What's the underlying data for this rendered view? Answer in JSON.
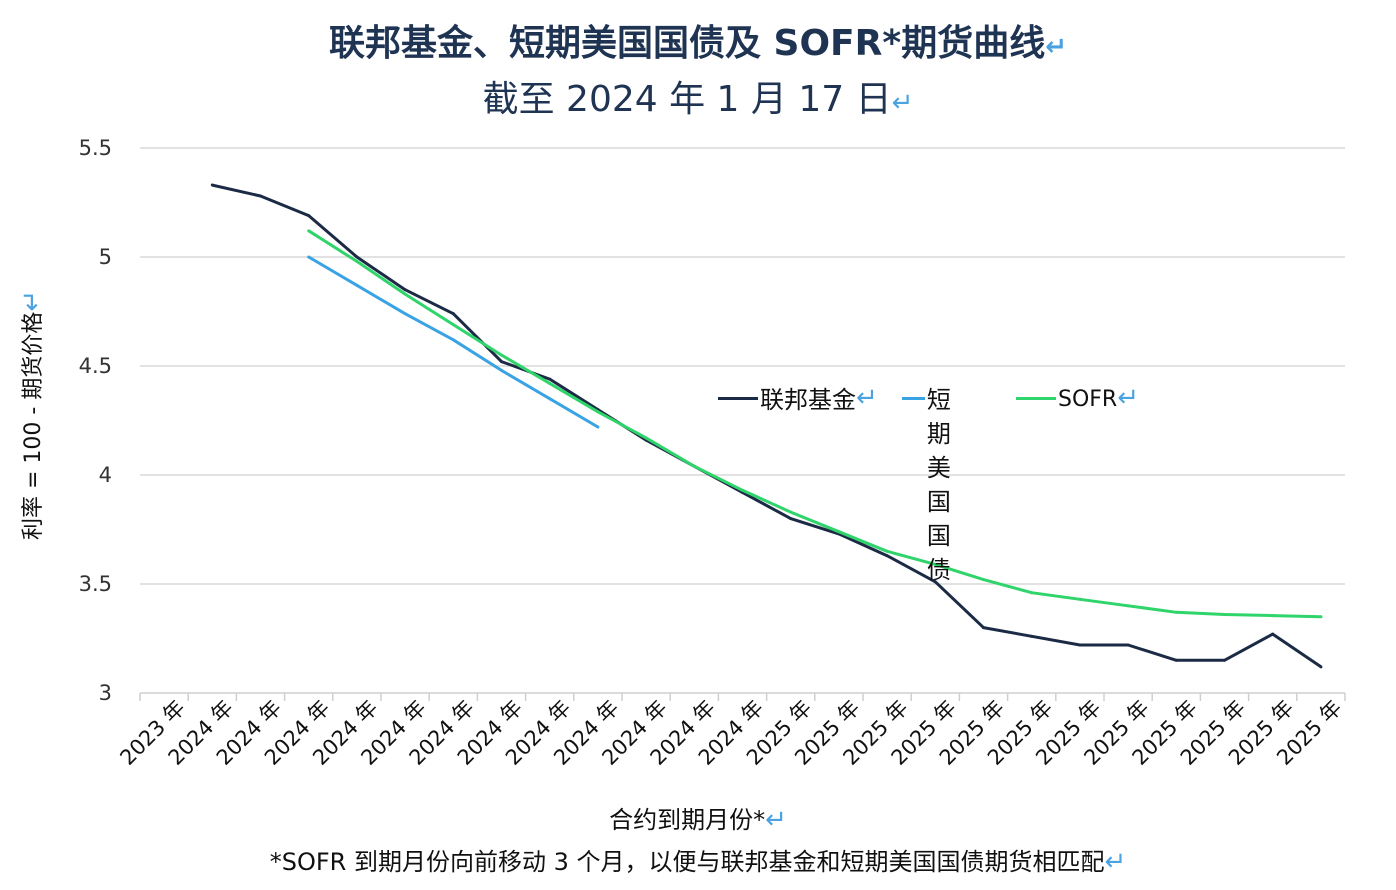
{
  "title": {
    "line1": "联邦基金、短期美国国债及 SOFR*期货曲线",
    "line2": "截至 2024 年 1 月 17 日",
    "return_mark": "↵"
  },
  "footnote": "*SOFR 到期月份向前移动 3 个月，以便与联邦基金和短期美国国债期货相匹配",
  "colors": {
    "fed_funds": "#1c2b45",
    "tbill": "#3aa3e3",
    "sofr": "#2fd46a",
    "grid": "#d9d9d9",
    "title": "#1f3352"
  },
  "chart_data": {
    "type": "line",
    "title": "联邦基金、短期美国国债及 SOFR*期货曲线",
    "subtitle": "截至 2024 年 1 月 17 日",
    "xlabel": "合约到期月份*",
    "ylabel": "利率 = 100 - 期货价格",
    "ylim": [
      3,
      5.5
    ],
    "yticks": [
      "3",
      "3.5",
      "4",
      "4.5",
      "5",
      "5.5"
    ],
    "grid": true,
    "legend_position": "center-right",
    "categories": [
      "2023 年",
      "2024 年",
      "2024 年",
      "2024 年",
      "2024 年",
      "2024 年",
      "2024 年",
      "2024 年",
      "2024 年",
      "2024 年",
      "2024 年",
      "2024 年",
      "2024 年",
      "2025 年",
      "2025 年",
      "2025 年",
      "2025 年",
      "2025 年",
      "2025 年",
      "2025 年",
      "2025 年",
      "2025 年",
      "2025 年",
      "2025 年",
      "2025 年"
    ],
    "series": [
      {
        "name": "联邦基金",
        "color": "#1c2b45",
        "values": [
          null,
          5.33,
          5.28,
          5.19,
          5.0,
          4.85,
          4.74,
          4.52,
          4.44,
          4.3,
          4.16,
          4.04,
          3.92,
          3.8,
          3.73,
          3.63,
          3.51,
          3.3,
          3.26,
          3.22,
          3.22,
          3.15,
          3.15,
          3.27,
          3.12
        ]
      },
      {
        "name": "短期美国国债",
        "color": "#3aa3e3",
        "values": [
          null,
          null,
          null,
          5.0,
          4.87,
          4.74,
          4.62,
          4.48,
          4.35,
          4.22,
          null,
          null,
          null,
          null,
          null,
          null,
          null,
          null,
          null,
          null,
          null,
          null,
          null,
          null,
          null
        ]
      },
      {
        "name": "SOFR",
        "color": "#2fd46a",
        "values": [
          null,
          null,
          null,
          5.12,
          4.98,
          4.83,
          4.69,
          4.55,
          4.42,
          4.29,
          4.17,
          4.04,
          3.93,
          3.83,
          3.74,
          3.65,
          3.59,
          3.52,
          3.46,
          3.43,
          3.4,
          3.37,
          3.36,
          3.355,
          3.35
        ]
      }
    ]
  },
  "legend": [
    {
      "label": "联邦基金",
      "color": "#1c2b45"
    },
    {
      "label": "短期美\n国国债",
      "color": "#3aa3e3"
    },
    {
      "label": "SOFR",
      "color": "#2fd46a"
    }
  ]
}
